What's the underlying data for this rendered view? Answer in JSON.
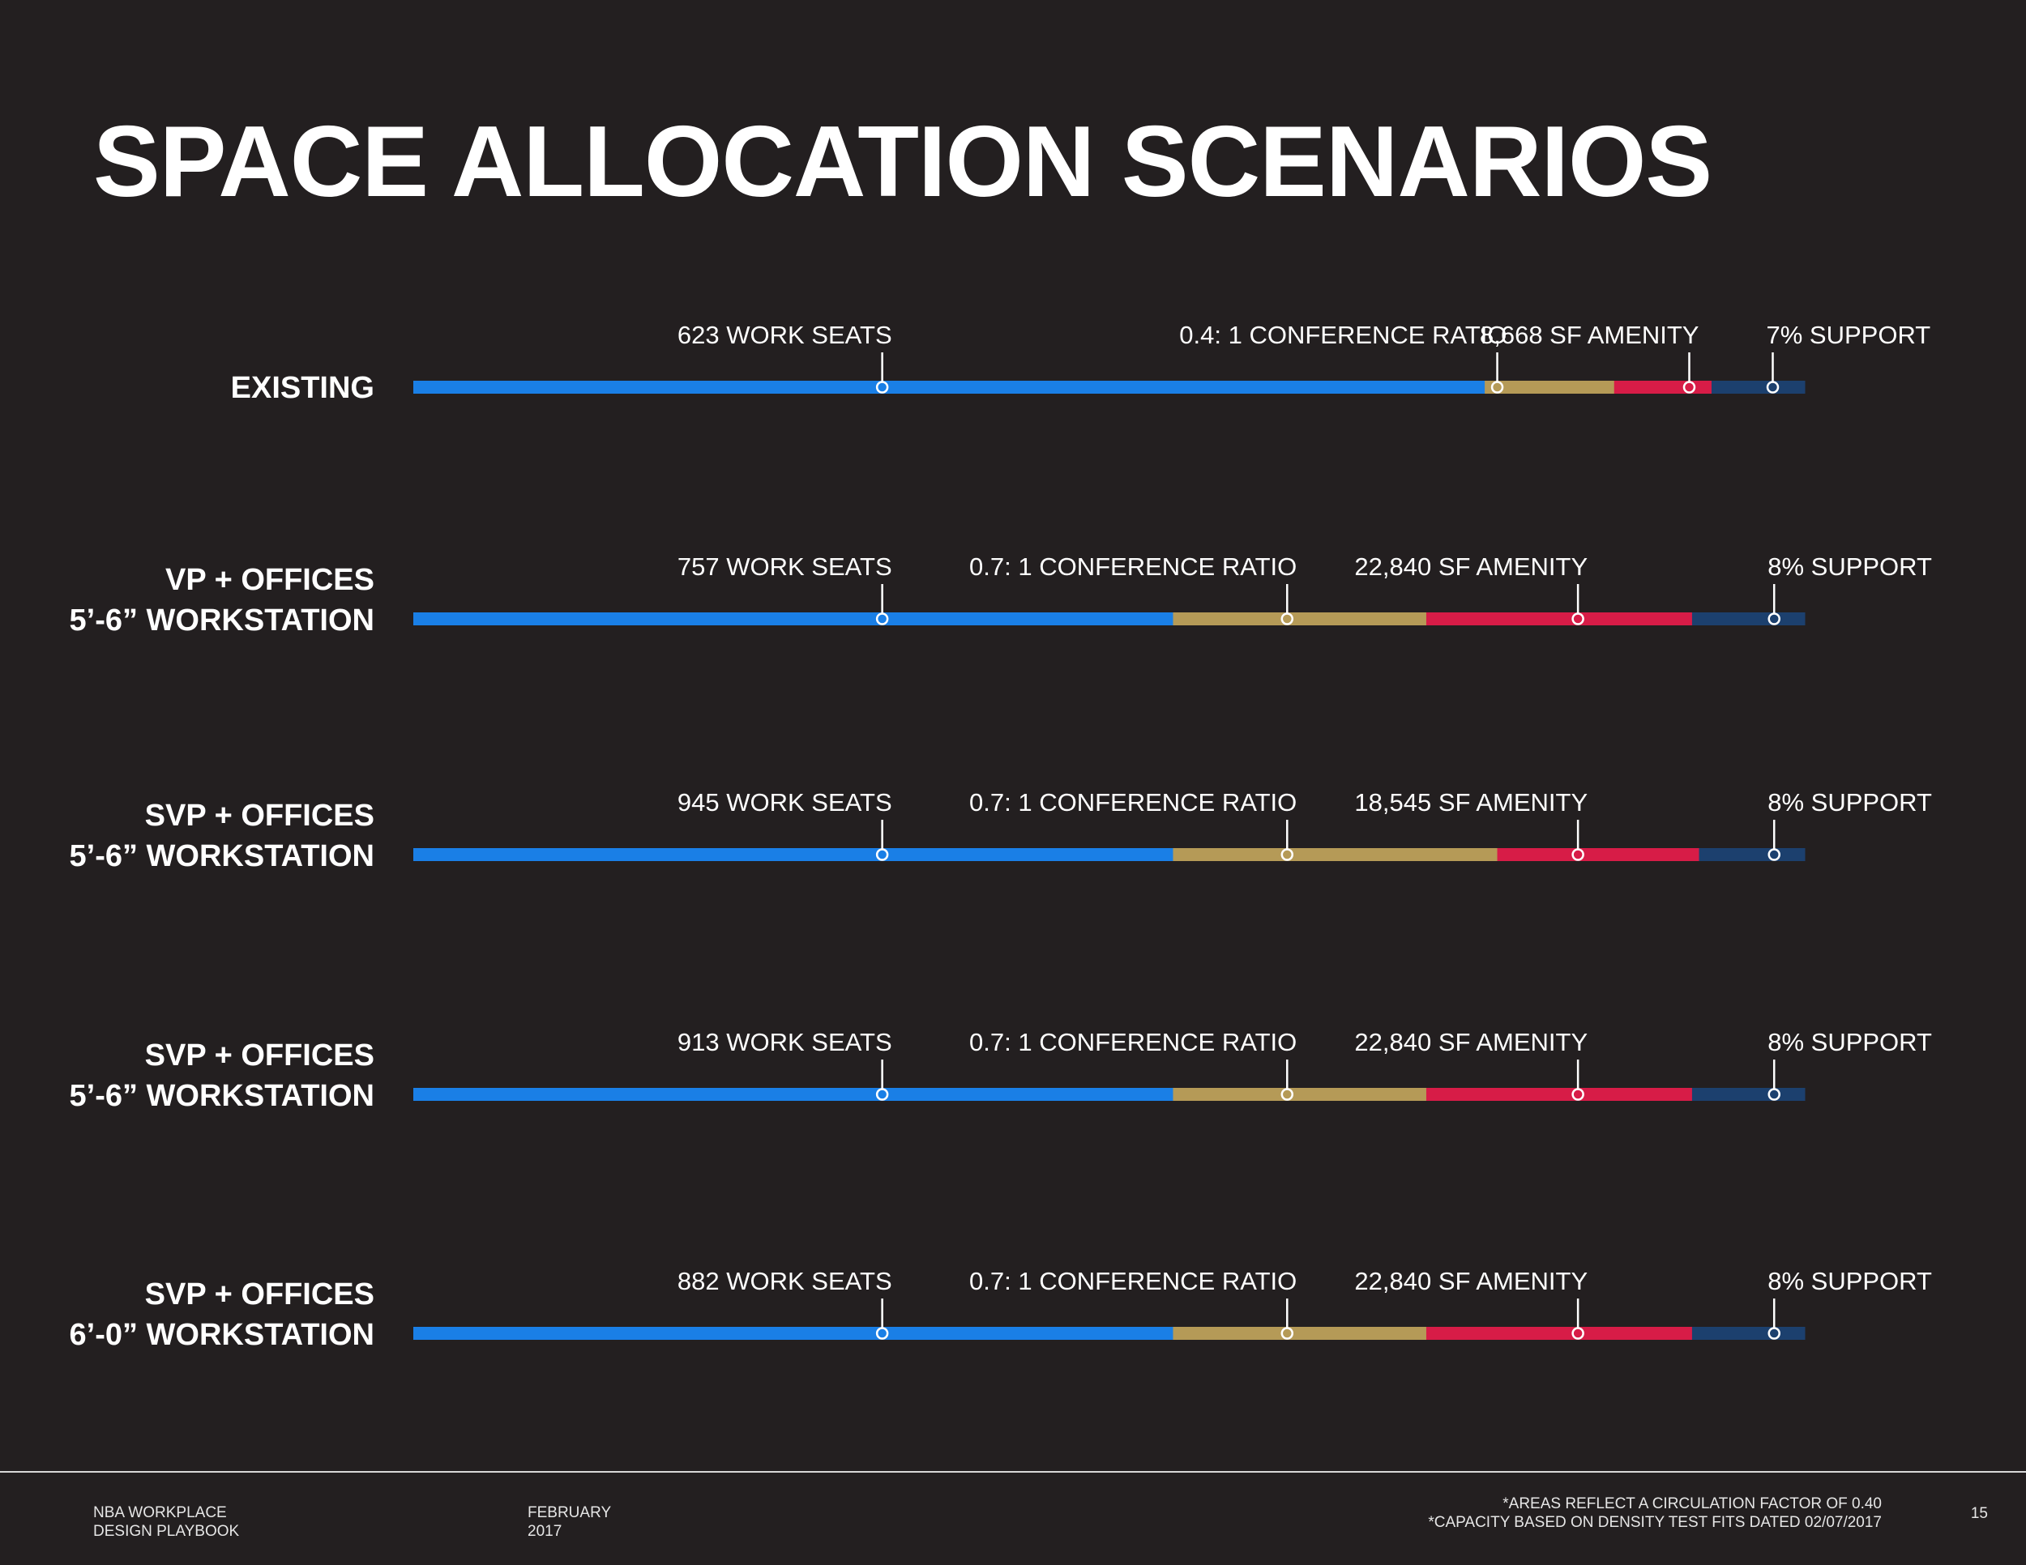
{
  "title": "SPACE ALLOCATION SCENARIOS",
  "colors": {
    "background": "#231f20",
    "work_seats": "#1a7fe6",
    "conference": "#b59a57",
    "amenity": "#d71c47",
    "support": "#1c406e"
  },
  "chart_data": {
    "type": "bar",
    "orientation": "horizontal-stacked",
    "segments": [
      "work_seats",
      "conference",
      "amenity",
      "support"
    ],
    "rows": [
      {
        "label_lines": [
          "EXISTING"
        ],
        "shares": [
          0.77,
          0.093,
          0.07,
          0.067
        ],
        "annotations": [
          "623 WORK SEATS",
          "0.4: 1 CONFERENCE RATIO",
          "8,668 SF AMENITY",
          "7% SUPPORT"
        ],
        "marker_pos": [
          0.337,
          0.779,
          0.917,
          0.977
        ]
      },
      {
        "label_lines": [
          "VP + OFFICES",
          "5’-6” WORKSTATION"
        ],
        "shares": [
          0.546,
          0.182,
          0.191,
          0.081
        ],
        "annotations": [
          "757 WORK SEATS",
          "0.7: 1 CONFERENCE RATIO",
          "22,840 SF AMENITY",
          "8% SUPPORT"
        ],
        "marker_pos": [
          0.337,
          0.628,
          0.837,
          0.978
        ]
      },
      {
        "label_lines": [
          "SVP + OFFICES",
          "5’-6” WORKSTATION"
        ],
        "shares": [
          0.546,
          0.233,
          0.145,
          0.076
        ],
        "annotations": [
          "945 WORK SEATS",
          "0.7: 1 CONFERENCE RATIO",
          "18,545 SF AMENITY",
          "8% SUPPORT"
        ],
        "marker_pos": [
          0.337,
          0.628,
          0.837,
          0.978
        ]
      },
      {
        "label_lines": [
          "SVP + OFFICES",
          "5’-6” WORKSTATION"
        ],
        "shares": [
          0.546,
          0.182,
          0.191,
          0.081
        ],
        "annotations": [
          "913 WORK SEATS",
          "0.7: 1 CONFERENCE RATIO",
          "22,840 SF AMENITY",
          "8% SUPPORT"
        ],
        "marker_pos": [
          0.337,
          0.628,
          0.837,
          0.978
        ]
      },
      {
        "label_lines": [
          "SVP + OFFICES",
          "6’-0” WORKSTATION"
        ],
        "shares": [
          0.546,
          0.182,
          0.191,
          0.081
        ],
        "annotations": [
          "882 WORK SEATS",
          "0.7: 1 CONFERENCE RATIO",
          "22,840 SF AMENITY",
          "8% SUPPORT"
        ],
        "marker_pos": [
          0.337,
          0.628,
          0.837,
          0.978
        ]
      }
    ]
  },
  "footer": {
    "doc_line1": "NBA WORKPLACE",
    "doc_line2": "DESIGN PLAYBOOK",
    "date_line1": "FEBRUARY",
    "date_line2": "2017",
    "note1": "*AREAS REFLECT A CIRCULATION FACTOR OF 0.40",
    "note2": "*CAPACITY BASED ON DENSITY TEST FITS DATED 02/07/2017",
    "page": "15"
  }
}
